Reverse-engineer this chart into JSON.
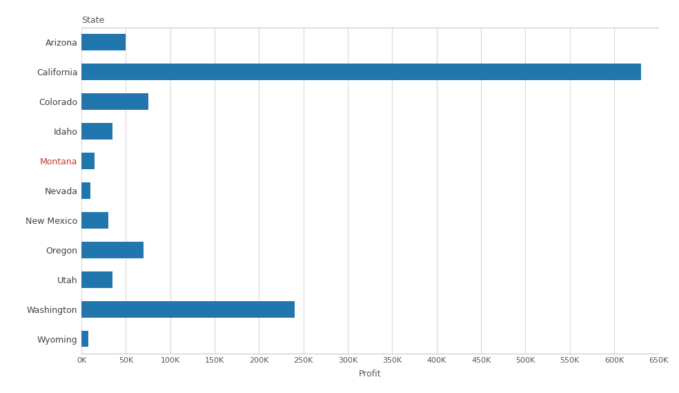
{
  "states": [
    "Arizona",
    "California",
    "Colorado",
    "Idaho",
    "Montana",
    "Nevada",
    "New Mexico",
    "Oregon",
    "Utah",
    "Washington",
    "Wyoming"
  ],
  "values": [
    50000,
    630000,
    75000,
    35000,
    15000,
    10000,
    30000,
    70000,
    35000,
    240000,
    8000
  ],
  "bar_color": "#2176AE",
  "title": "State",
  "xlabel": "Profit",
  "xlim": [
    0,
    650000
  ],
  "xtick_step": 50000,
  "background_color": "#ffffff",
  "grid_color": "#d8d8d8",
  "label_color_default": "#404040",
  "label_color_highlight": "#c0392b",
  "highlight_states": [
    "Montana"
  ],
  "bar_height": 0.55
}
